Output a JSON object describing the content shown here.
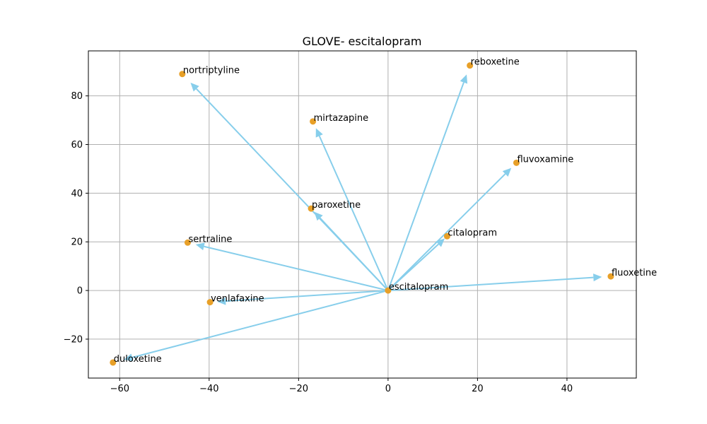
{
  "chart_data": {
    "type": "scatter",
    "title": "GLOVE- escitalopram",
    "xlabel": "",
    "ylabel": "",
    "xlim": [
      -67,
      55.5
    ],
    "ylim": [
      -36,
      98.5
    ],
    "xticks": [
      -60,
      -40,
      -20,
      0,
      20,
      40
    ],
    "yticks": [
      -20,
      0,
      20,
      40,
      60,
      80
    ],
    "xtick_labels": [
      "−60",
      "−40",
      "−20",
      "0",
      "20",
      "40"
    ],
    "ytick_labels": [
      "−20",
      "0",
      "20",
      "40",
      "60",
      "80"
    ],
    "grid": true,
    "origin": {
      "name": "escitalopram",
      "x": 0,
      "y": 0
    },
    "points": [
      {
        "name": "reboxetine",
        "x": 18.3,
        "y": 92.5
      },
      {
        "name": "nortriptyline",
        "x": -46,
        "y": 89
      },
      {
        "name": "mirtazapine",
        "x": -16.8,
        "y": 69.5
      },
      {
        "name": "fluvoxamine",
        "x": 28.7,
        "y": 52.5
      },
      {
        "name": "paroxetine",
        "x": -17.2,
        "y": 33.7
      },
      {
        "name": "citalopram",
        "x": 13.2,
        "y": 22.3
      },
      {
        "name": "sertraline",
        "x": -44.8,
        "y": 19.7
      },
      {
        "name": "fluoxetine",
        "x": 49.8,
        "y": 5.8
      },
      {
        "name": "escitalopram",
        "x": 0,
        "y": 0
      },
      {
        "name": "venlafaxine",
        "x": -39.8,
        "y": -4.8
      },
      {
        "name": "duloxetine",
        "x": -61.5,
        "y": -29.6
      }
    ],
    "colors": {
      "point": "#e8a028",
      "arrow": "#87ceeb",
      "grid": "#b0b0b0"
    }
  }
}
